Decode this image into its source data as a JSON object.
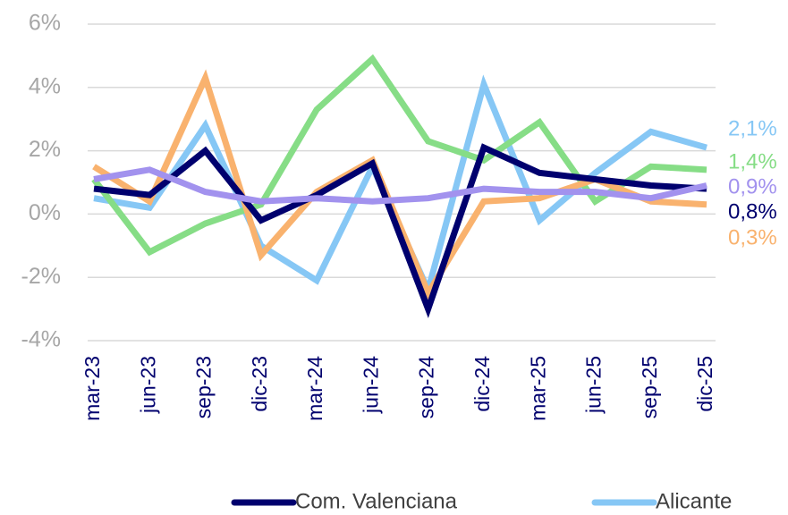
{
  "chart_data": {
    "type": "line",
    "categories": [
      "mar-23",
      "jun-23",
      "sep-23",
      "dic-23",
      "mar-24",
      "jun-24",
      "sep-24",
      "dic-24",
      "mar-25",
      "jun-25",
      "sep-25",
      "dic-25"
    ],
    "series": [
      {
        "name": "Com. Valenciana",
        "color": "#00006e",
        "values": [
          0.8,
          0.6,
          2.0,
          -0.2,
          0.6,
          1.6,
          -3.0,
          2.1,
          1.3,
          1.1,
          0.9,
          0.8
        ],
        "end_label": "0,8%"
      },
      {
        "name": "Alicante",
        "color": "#86c7f5",
        "values": [
          0.5,
          0.2,
          2.8,
          -1.0,
          -2.1,
          1.5,
          -2.4,
          4.1,
          -0.2,
          1.3,
          2.6,
          2.1
        ],
        "end_label": "2,1%"
      },
      {
        "color": "#86dd86",
        "values": [
          1.1,
          -1.2,
          -0.3,
          0.3,
          3.3,
          4.9,
          2.3,
          1.7,
          2.9,
          0.4,
          1.5,
          1.4
        ],
        "end_label": "1,4%"
      },
      {
        "color": "#f9b26e",
        "values": [
          1.5,
          0.4,
          4.3,
          -1.3,
          0.7,
          1.7,
          -2.5,
          0.4,
          0.5,
          1.1,
          0.4,
          0.3
        ],
        "end_label": "0,3%"
      },
      {
        "color": "#a292ee",
        "values": [
          1.1,
          1.4,
          0.7,
          0.4,
          0.5,
          0.4,
          0.5,
          0.8,
          0.7,
          0.7,
          0.5,
          0.9
        ],
        "end_label": "0,9%"
      }
    ],
    "ylim": [
      -4,
      6
    ],
    "yticks": [
      {
        "value": -4,
        "label": "-4%"
      },
      {
        "value": -2,
        "label": "-2%"
      },
      {
        "value": 0,
        "label": "0%"
      },
      {
        "value": 2,
        "label": "2%"
      },
      {
        "value": 4,
        "label": "4%"
      },
      {
        "value": 6,
        "label": "6%"
      }
    ],
    "grid": true
  }
}
